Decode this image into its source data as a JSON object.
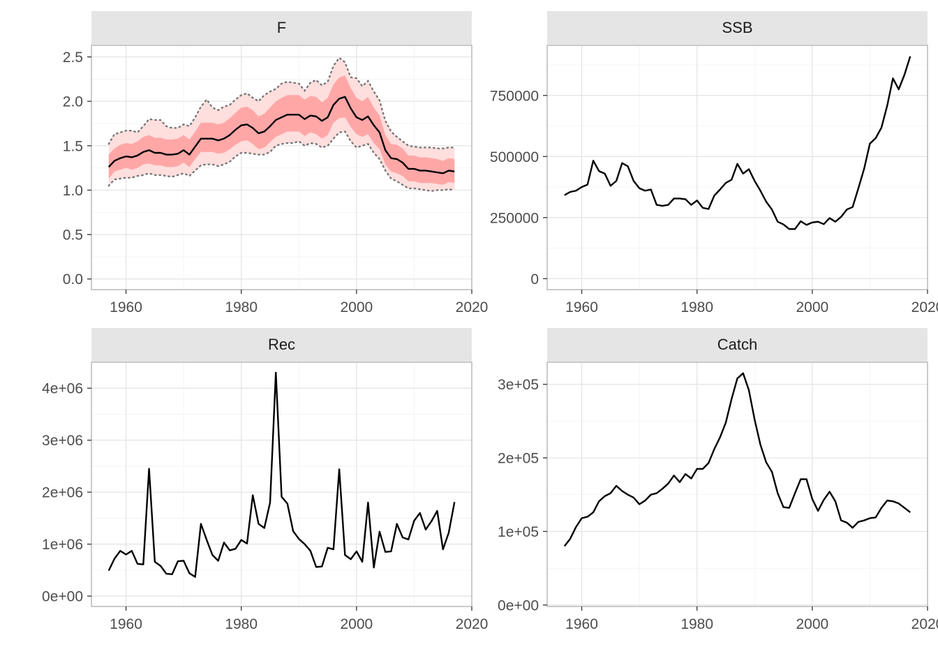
{
  "chart_data": [
    {
      "type": "line",
      "title": "F",
      "xlim": [
        1954,
        2020
      ],
      "ylim": [
        -0.12,
        2.63
      ],
      "x_ticks": [
        1960,
        1980,
        2000,
        2020
      ],
      "x_tick_labels": [
        "1960",
        "1980",
        "2000",
        "2020"
      ],
      "y_ticks": [
        0,
        0.5,
        1,
        1.5,
        2,
        2.5
      ],
      "y_tick_labels": [
        "0.0",
        "0.5",
        "1.0",
        "1.5",
        "2.0",
        "2.5"
      ],
      "grid": true,
      "x": [
        1957,
        1958,
        1959,
        1960,
        1961,
        1962,
        1963,
        1964,
        1965,
        1966,
        1967,
        1968,
        1969,
        1970,
        1971,
        1972,
        1973,
        1974,
        1975,
        1976,
        1977,
        1978,
        1979,
        1980,
        1981,
        1982,
        1983,
        1984,
        1985,
        1986,
        1987,
        1988,
        1989,
        1990,
        1991,
        1992,
        1993,
        1994,
        1995,
        1996,
        1997,
        1998,
        1999,
        2000,
        2001,
        2002,
        2003,
        2004,
        2005,
        2006,
        2007,
        2008,
        2009,
        2010,
        2011,
        2012,
        2013,
        2014,
        2015,
        2016,
        2017
      ],
      "series": [
        {
          "values": [
            1.26,
            1.33,
            1.36,
            1.38,
            1.37,
            1.39,
            1.43,
            1.45,
            1.42,
            1.42,
            1.4,
            1.4,
            1.41,
            1.45,
            1.4,
            1.49,
            1.58,
            1.58,
            1.58,
            1.56,
            1.58,
            1.62,
            1.68,
            1.73,
            1.74,
            1.7,
            1.64,
            1.66,
            1.72,
            1.79,
            1.82,
            1.85,
            1.85,
            1.85,
            1.8,
            1.84,
            1.83,
            1.78,
            1.82,
            1.96,
            2.03,
            2.05,
            1.92,
            1.82,
            1.79,
            1.83,
            1.73,
            1.65,
            1.45,
            1.36,
            1.35,
            1.31,
            1.24,
            1.24,
            1.22,
            1.22,
            1.21,
            1.2,
            1.19,
            1.22,
            1.21
          ]
        }
      ],
      "bands": [
        {
          "lower": [
            1.13,
            1.21,
            1.23,
            1.25,
            1.23,
            1.25,
            1.29,
            1.3,
            1.28,
            1.28,
            1.26,
            1.26,
            1.27,
            1.31,
            1.26,
            1.35,
            1.43,
            1.43,
            1.43,
            1.41,
            1.42,
            1.46,
            1.51,
            1.55,
            1.56,
            1.52,
            1.46,
            1.48,
            1.54,
            1.6,
            1.63,
            1.66,
            1.66,
            1.66,
            1.61,
            1.65,
            1.63,
            1.58,
            1.62,
            1.76,
            1.81,
            1.82,
            1.71,
            1.63,
            1.6,
            1.63,
            1.53,
            1.46,
            1.29,
            1.21,
            1.19,
            1.16,
            1.1,
            1.1,
            1.08,
            1.08,
            1.08,
            1.07,
            1.06,
            1.09,
            1.08
          ],
          "upper": [
            1.4,
            1.47,
            1.51,
            1.53,
            1.52,
            1.55,
            1.6,
            1.62,
            1.59,
            1.59,
            1.57,
            1.57,
            1.58,
            1.62,
            1.57,
            1.66,
            1.76,
            1.76,
            1.76,
            1.74,
            1.76,
            1.81,
            1.87,
            1.93,
            1.94,
            1.9,
            1.83,
            1.86,
            1.93,
            2.0,
            2.04,
            2.07,
            2.07,
            2.07,
            2.02,
            2.06,
            2.05,
            1.99,
            2.04,
            2.19,
            2.27,
            2.29,
            2.15,
            2.04,
            2.0,
            2.05,
            1.93,
            1.84,
            1.62,
            1.52,
            1.51,
            1.47,
            1.39,
            1.39,
            1.37,
            1.37,
            1.36,
            1.35,
            1.33,
            1.36,
            1.35
          ]
        },
        {
          "lower": [
            1.05,
            1.12,
            1.13,
            1.14,
            1.14,
            1.16,
            1.17,
            1.19,
            1.17,
            1.17,
            1.16,
            1.15,
            1.17,
            1.19,
            1.16,
            1.22,
            1.28,
            1.29,
            1.29,
            1.27,
            1.29,
            1.32,
            1.38,
            1.42,
            1.42,
            1.41,
            1.4,
            1.4,
            1.43,
            1.5,
            1.52,
            1.53,
            1.53,
            1.55,
            1.5,
            1.53,
            1.52,
            1.48,
            1.5,
            1.58,
            1.65,
            1.66,
            1.55,
            1.48,
            1.5,
            1.52,
            1.42,
            1.35,
            1.22,
            1.13,
            1.1,
            1.06,
            1.02,
            1.02,
            1.01,
            1.0,
            0.99,
            1.0,
            1.0,
            1.01,
            1.0
          ],
          "upper": [
            1.52,
            1.63,
            1.65,
            1.67,
            1.67,
            1.65,
            1.72,
            1.8,
            1.79,
            1.79,
            1.72,
            1.7,
            1.7,
            1.74,
            1.72,
            1.82,
            1.94,
            2.02,
            1.93,
            1.9,
            1.94,
            1.96,
            2.02,
            2.07,
            2.09,
            2.04,
            2.0,
            2.07,
            2.11,
            2.14,
            2.2,
            2.22,
            2.21,
            2.2,
            2.12,
            2.21,
            2.24,
            2.18,
            2.22,
            2.4,
            2.49,
            2.44,
            2.27,
            2.26,
            2.17,
            2.23,
            2.11,
            2.01,
            1.78,
            1.66,
            1.6,
            1.55,
            1.5,
            1.49,
            1.48,
            1.48,
            1.48,
            1.47,
            1.47,
            1.48,
            1.48
          ]
        }
      ]
    },
    {
      "type": "line",
      "title": "SSB",
      "xlim": [
        1954,
        2020
      ],
      "ylim": [
        -45000,
        955000
      ],
      "x_ticks": [
        1960,
        1980,
        2000,
        2020
      ],
      "x_tick_labels": [
        "1960",
        "1980",
        "2000",
        "2020"
      ],
      "y_ticks": [
        0,
        250000,
        500000,
        750000
      ],
      "y_tick_labels": [
        "0",
        "250000",
        "500000",
        "750000"
      ],
      "grid": true,
      "x": [
        1957,
        1958,
        1959,
        1960,
        1961,
        1962,
        1963,
        1964,
        1965,
        1966,
        1967,
        1968,
        1969,
        1970,
        1971,
        1972,
        1973,
        1974,
        1975,
        1976,
        1977,
        1978,
        1979,
        1980,
        1981,
        1982,
        1983,
        1984,
        1985,
        1986,
        1987,
        1988,
        1989,
        1990,
        1991,
        1992,
        1993,
        1994,
        1995,
        1996,
        1997,
        1998,
        1999,
        2000,
        2001,
        2002,
        2003,
        2004,
        2005,
        2006,
        2007,
        2008,
        2009,
        2010,
        2011,
        2012,
        2013,
        2014,
        2015,
        2016,
        2017
      ],
      "series": [
        {
          "values": [
            342000,
            355000,
            360000,
            375000,
            385000,
            483000,
            440000,
            430000,
            380000,
            400000,
            473000,
            460000,
            400000,
            370000,
            360000,
            365000,
            302000,
            298000,
            302000,
            328000,
            328000,
            325000,
            302000,
            320000,
            290000,
            285000,
            340000,
            365000,
            392000,
            405000,
            470000,
            430000,
            448000,
            400000,
            360000,
            315000,
            283000,
            233000,
            222000,
            203000,
            203000,
            235000,
            220000,
            230000,
            233000,
            223000,
            248000,
            233000,
            253000,
            283000,
            293000,
            370000,
            450000,
            553000,
            575000,
            618000,
            708000,
            820000,
            775000,
            835000,
            910000
          ]
        }
      ]
    },
    {
      "type": "line",
      "title": "Rec",
      "xlim": [
        1954,
        2020
      ],
      "ylim": [
        -200000,
        4500000
      ],
      "x_ticks": [
        1960,
        1980,
        2000,
        2020
      ],
      "x_tick_labels": [
        "1960",
        "1980",
        "2000",
        "2020"
      ],
      "y_ticks": [
        0,
        1000000,
        2000000,
        3000000,
        4000000
      ],
      "y_tick_labels": [
        "0e+00",
        "1e+06",
        "2e+06",
        "3e+06",
        "4e+06"
      ],
      "grid": true,
      "x": [
        1957,
        1958,
        1959,
        1960,
        1961,
        1962,
        1963,
        1964,
        1965,
        1966,
        1967,
        1968,
        1969,
        1970,
        1971,
        1972,
        1973,
        1974,
        1975,
        1976,
        1977,
        1978,
        1979,
        1980,
        1981,
        1982,
        1983,
        1984,
        1985,
        1986,
        1987,
        1988,
        1989,
        1990,
        1991,
        1992,
        1993,
        1994,
        1995,
        1996,
        1997,
        1998,
        1999,
        2000,
        2001,
        2002,
        2003,
        2004,
        2005,
        2006,
        2007,
        2008,
        2009,
        2010,
        2011,
        2012,
        2013,
        2014,
        2015,
        2016,
        2017
      ],
      "series": [
        {
          "values": [
            490000,
            720000,
            870000,
            800000,
            870000,
            620000,
            610000,
            2450000,
            660000,
            580000,
            430000,
            420000,
            670000,
            680000,
            440000,
            370000,
            1390000,
            1080000,
            790000,
            680000,
            1030000,
            880000,
            910000,
            1080000,
            1010000,
            1940000,
            1390000,
            1310000,
            1800000,
            4300000,
            1910000,
            1780000,
            1250000,
            1100000,
            1000000,
            870000,
            560000,
            570000,
            930000,
            900000,
            2440000,
            790000,
            710000,
            860000,
            660000,
            1800000,
            550000,
            1240000,
            850000,
            860000,
            1390000,
            1130000,
            1090000,
            1450000,
            1600000,
            1280000,
            1440000,
            1640000,
            900000,
            1220000,
            1810000
          ]
        }
      ]
    },
    {
      "type": "line",
      "title": "Catch",
      "xlim": [
        1954,
        2020
      ],
      "ylim": [
        -2000,
        330000
      ],
      "x_ticks": [
        1960,
        1980,
        2000,
        2020
      ],
      "x_tick_labels": [
        "1960",
        "1980",
        "2000",
        "2020"
      ],
      "y_ticks": [
        0,
        100000,
        200000,
        300000
      ],
      "y_tick_labels": [
        "0e+00",
        "1e+05",
        "2e+05",
        "3e+05"
      ],
      "grid": true,
      "x": [
        1957,
        1958,
        1959,
        1960,
        1961,
        1962,
        1963,
        1964,
        1965,
        1966,
        1967,
        1968,
        1969,
        1970,
        1971,
        1972,
        1973,
        1974,
        1975,
        1976,
        1977,
        1978,
        1979,
        1980,
        1981,
        1982,
        1983,
        1984,
        1985,
        1986,
        1987,
        1988,
        1989,
        1990,
        1991,
        1992,
        1993,
        1994,
        1995,
        1996,
        1997,
        1998,
        1999,
        2000,
        2001,
        2002,
        2003,
        2004,
        2005,
        2006,
        2007,
        2008,
        2009,
        2010,
        2011,
        2012,
        2013,
        2014,
        2015,
        2016,
        2017
      ],
      "series": [
        {
          "values": [
            80000,
            90000,
            106000,
            118000,
            120000,
            126000,
            141000,
            148000,
            152000,
            162000,
            155000,
            150000,
            146000,
            137000,
            142000,
            150000,
            152000,
            158000,
            165000,
            176000,
            167000,
            178000,
            172000,
            185000,
            185000,
            193000,
            212000,
            228000,
            248000,
            280000,
            308000,
            315000,
            292000,
            252000,
            218000,
            194000,
            181000,
            152000,
            133000,
            132000,
            152000,
            171000,
            171000,
            144000,
            128000,
            143000,
            154000,
            141000,
            115000,
            112000,
            105000,
            113000,
            115000,
            118000,
            119000,
            132000,
            142000,
            141000,
            138000,
            132000,
            126000
          ]
        }
      ]
    }
  ]
}
